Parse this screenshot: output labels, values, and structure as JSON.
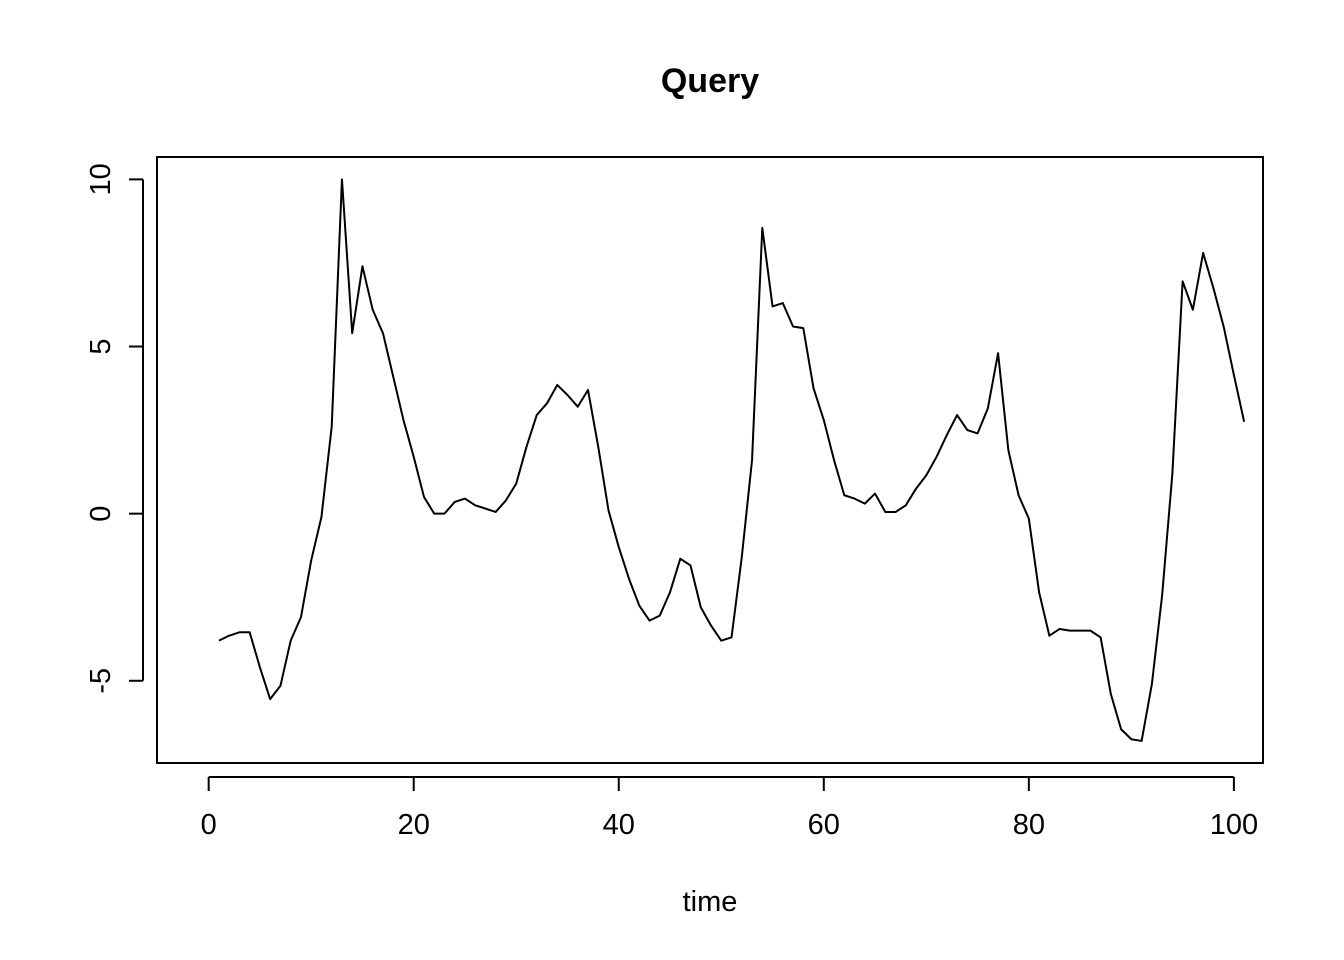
{
  "chart_data": {
    "type": "line",
    "title": "Query",
    "xlabel": "time",
    "ylabel": "",
    "xlim": [
      -5.04,
      102.84
    ],
    "ylim": [
      -7.46,
      10.67
    ],
    "x_ticks": [
      0,
      20,
      40,
      60,
      80,
      100
    ],
    "x_tick_labels": [
      "0",
      "20",
      "40",
      "60",
      "80",
      "100"
    ],
    "y_ticks": [
      -5,
      0,
      5,
      10
    ],
    "y_tick_labels": [
      "-5",
      "0",
      "5",
      "10"
    ],
    "grid": false,
    "series": [
      {
        "color": "#000000",
        "x": [
          1,
          2,
          3,
          4,
          5,
          6,
          7,
          8,
          9,
          10,
          11,
          12,
          13,
          14,
          15,
          16,
          17,
          18,
          19,
          20,
          21,
          22,
          23,
          24,
          25,
          26,
          27,
          28,
          29,
          30,
          31,
          32,
          33,
          34,
          35,
          36,
          37,
          38,
          39,
          40,
          41,
          42,
          43,
          44,
          45,
          46,
          47,
          48,
          49,
          50,
          51,
          52,
          53,
          54,
          55,
          56,
          57,
          58,
          59,
          60,
          61,
          62,
          63,
          64,
          65,
          66,
          67,
          68,
          69,
          70,
          71,
          72,
          73,
          74,
          75,
          76,
          77,
          78,
          79,
          80,
          81,
          82,
          83,
          84,
          85,
          86,
          87,
          88,
          89,
          90,
          91,
          92,
          93,
          94,
          95,
          96,
          97,
          98,
          99,
          100,
          101
        ],
        "y": [
          -3.8,
          -3.65,
          -3.55,
          -3.55,
          -4.6,
          -5.55,
          -5.15,
          -3.8,
          -3.1,
          -1.4,
          -0.1,
          2.6,
          10.0,
          5.4,
          7.4,
          6.1,
          5.4,
          4.1,
          2.8,
          1.7,
          0.5,
          0.0,
          0.0,
          0.35,
          0.45,
          0.25,
          0.15,
          0.05,
          0.4,
          0.9,
          2.0,
          2.95,
          3.3,
          3.85,
          3.55,
          3.2,
          3.7,
          2.0,
          0.1,
          -1.0,
          -1.95,
          -2.75,
          -3.2,
          -3.05,
          -2.35,
          -1.35,
          -1.55,
          -2.8,
          -3.35,
          -3.8,
          -3.7,
          -1.3,
          1.6,
          8.55,
          6.2,
          6.3,
          5.6,
          5.55,
          3.75,
          2.8,
          1.6,
          0.55,
          0.45,
          0.3,
          0.6,
          0.05,
          0.05,
          0.25,
          0.75,
          1.15,
          1.7,
          2.35,
          2.95,
          2.5,
          2.4,
          3.15,
          4.8,
          1.9,
          0.55,
          -0.15,
          -2.35,
          -3.65,
          -3.45,
          -3.5,
          -3.5,
          -3.5,
          -3.7,
          -5.4,
          -6.45,
          -6.75,
          -6.8,
          -5.1,
          -2.45,
          1.2,
          6.95,
          6.1,
          7.8,
          6.75,
          5.6,
          4.15,
          2.75
        ]
      }
    ]
  }
}
